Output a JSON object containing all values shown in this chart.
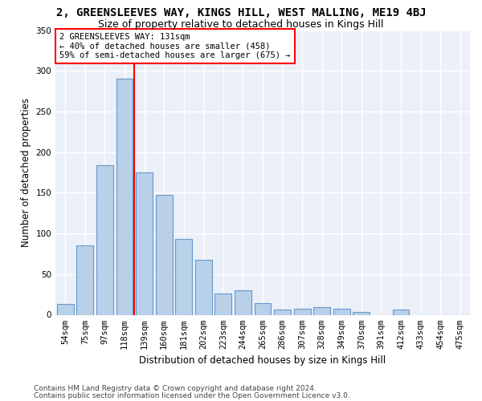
{
  "title": "2, GREENSLEEVES WAY, KINGS HILL, WEST MALLING, ME19 4BJ",
  "subtitle": "Size of property relative to detached houses in Kings Hill",
  "xlabel": "Distribution of detached houses by size in Kings Hill",
  "ylabel": "Number of detached properties",
  "categories": [
    "54sqm",
    "75sqm",
    "97sqm",
    "118sqm",
    "139sqm",
    "160sqm",
    "181sqm",
    "202sqm",
    "223sqm",
    "244sqm",
    "265sqm",
    "286sqm",
    "307sqm",
    "328sqm",
    "349sqm",
    "370sqm",
    "391sqm",
    "412sqm",
    "433sqm",
    "454sqm",
    "475sqm"
  ],
  "values": [
    13,
    85,
    184,
    290,
    175,
    147,
    93,
    68,
    26,
    30,
    14,
    6,
    7,
    9,
    7,
    3,
    0,
    6,
    0,
    0,
    0
  ],
  "bar_color": "#b8d0e8",
  "bar_edge_color": "#6699cc",
  "annotation_line1": "2 GREENSLEEVES WAY: 131sqm",
  "annotation_line2": "← 40% of detached houses are smaller (458)",
  "annotation_line3": "59% of semi-detached houses are larger (675) →",
  "annotation_box_color": "white",
  "annotation_border_color": "red",
  "ylim": [
    0,
    350
  ],
  "yticks": [
    0,
    50,
    100,
    150,
    200,
    250,
    300,
    350
  ],
  "footer_line1": "Contains HM Land Registry data © Crown copyright and database right 2024.",
  "footer_line2": "Contains public sector information licensed under the Open Government Licence v3.0.",
  "background_color": "#eaeff8",
  "grid_color": "white",
  "title_fontsize": 10,
  "subtitle_fontsize": 9,
  "axis_label_fontsize": 8.5,
  "tick_fontsize": 7.5,
  "annotation_fontsize": 7.5,
  "footer_fontsize": 6.5
}
